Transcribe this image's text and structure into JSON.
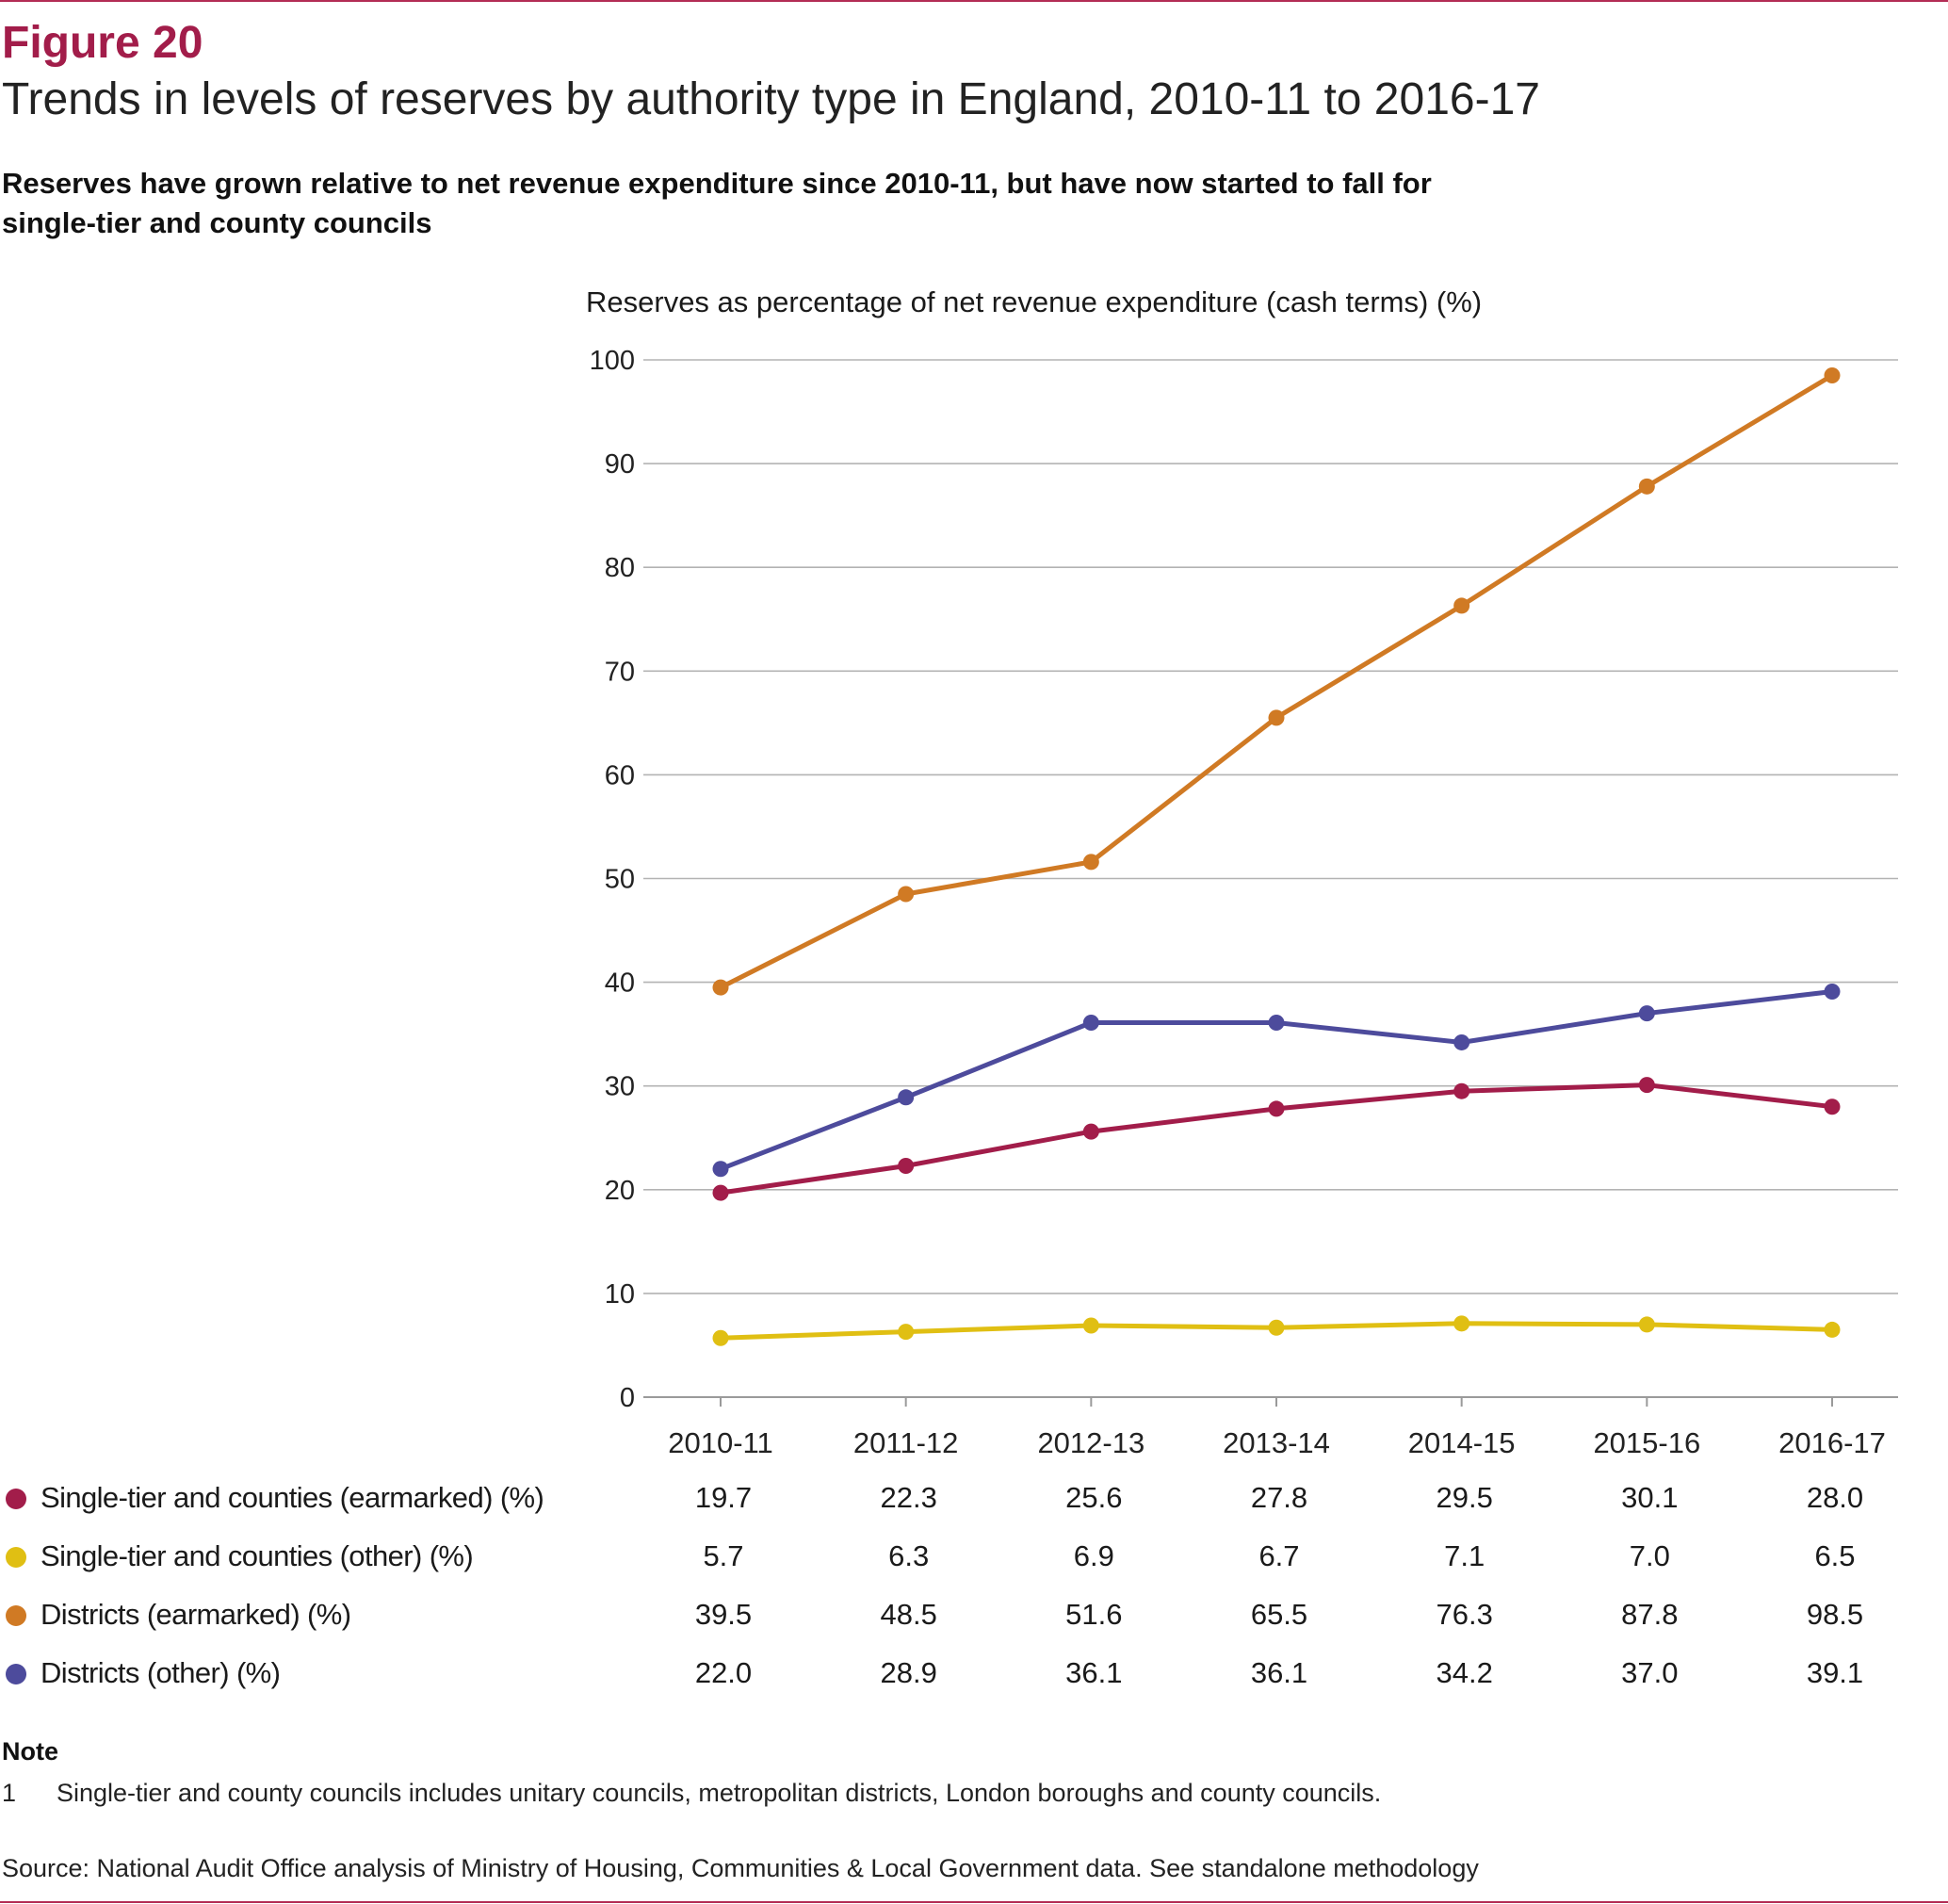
{
  "figure": {
    "label": "Figure 20",
    "title": "Trends in levels of reserves by authority type in England, 2010-11 to 2016-17",
    "subtitle": "Reserves have grown relative to net revenue expenditure since 2010-11, but have now started to fall for single-tier and county councils"
  },
  "chart_data": {
    "type": "line",
    "title": "Trends in levels of reserves by authority type in England, 2010-11 to 2016-17",
    "ylabel": "Reserves as percentage of net revenue expenditure (cash terms) (%)",
    "xlabel": "",
    "categories": [
      "2010-11",
      "2011-12",
      "2012-13",
      "2013-14",
      "2014-15",
      "2015-16",
      "2016-17"
    ],
    "ylim": [
      0,
      100
    ],
    "yticks": [
      0,
      10,
      20,
      30,
      40,
      50,
      60,
      70,
      80,
      90,
      100
    ],
    "grid": true,
    "legend": "table below chart",
    "series": [
      {
        "name": "Single-tier and counties (earmarked) (%)",
        "color": "#a21d4a",
        "values": [
          19.7,
          22.3,
          25.6,
          27.8,
          29.5,
          30.1,
          28.0
        ],
        "labels": [
          "19.7",
          "22.3",
          "25.6",
          "27.8",
          "29.5",
          "30.1",
          "28.0"
        ]
      },
      {
        "name": "Single-tier and counties (other) (%)",
        "color": "#e0bf13",
        "values": [
          5.7,
          6.3,
          6.9,
          6.7,
          7.1,
          7.0,
          6.5
        ],
        "labels": [
          "5.7",
          "6.3",
          "6.9",
          "6.7",
          "7.1",
          "7.0",
          "6.5"
        ]
      },
      {
        "name": "Districts (earmarked) (%)",
        "color": "#d07a24",
        "values": [
          39.5,
          48.5,
          51.6,
          65.5,
          76.3,
          87.8,
          98.5
        ],
        "labels": [
          "39.5",
          "48.5",
          "51.6",
          "65.5",
          "76.3",
          "87.8",
          "98.5"
        ]
      },
      {
        "name": "Districts (other) (%)",
        "color": "#4d4b9c",
        "values": [
          22.0,
          28.9,
          36.1,
          36.1,
          34.2,
          37.0,
          39.1
        ],
        "labels": [
          "22.0",
          "28.9",
          "36.1",
          "36.1",
          "34.2",
          "37.0",
          "39.1"
        ]
      }
    ]
  },
  "note": {
    "heading": "Note",
    "number": "1",
    "text": "Single-tier and county councils includes unitary councils, metropolitan districts, London boroughs and county councils."
  },
  "source": "Source: National Audit Office analysis of Ministry of Housing, Communities & Local Government data. See standalone methodology"
}
